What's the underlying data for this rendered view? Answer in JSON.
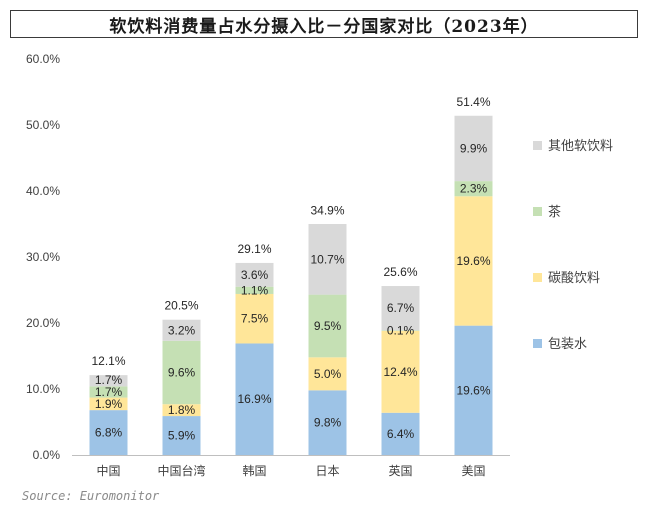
{
  "chart_data": {
    "type": "bar",
    "stacked": true,
    "title": "软饮料消费量占水分摄入比－分国家对比（2023年）",
    "categories": [
      "中国",
      "中国台湾",
      "韩国",
      "日本",
      "英国",
      "美国"
    ],
    "series": [
      {
        "name": "包装水",
        "values": [
          6.8,
          5.9,
          16.9,
          9.8,
          6.4,
          19.6
        ],
        "labels": [
          "6.8%",
          "5.9%",
          "16.9%",
          "9.8%",
          "6.4%",
          "19.6%"
        ],
        "color": "#9dc3e6"
      },
      {
        "name": "碳酸饮料",
        "values": [
          1.9,
          1.8,
          7.5,
          5.0,
          12.4,
          19.6
        ],
        "labels": [
          "1.9%",
          "1.8%",
          "7.5%",
          "5.0%",
          "12.4%",
          "19.6%"
        ],
        "color": "#ffe699"
      },
      {
        "name": "茶",
        "values": [
          1.7,
          9.6,
          1.1,
          9.5,
          0.1,
          2.3
        ],
        "labels": [
          "1.7%",
          "9.6%",
          "1.1%",
          "9.5%",
          "0.1%",
          "2.3%"
        ],
        "color": "#c5e0b4"
      },
      {
        "name": "其他软饮料",
        "values": [
          1.7,
          3.2,
          3.6,
          10.7,
          6.7,
          9.9
        ],
        "labels": [
          "1.7%",
          "3.2%",
          "3.6%",
          "10.7%",
          "6.7%",
          "9.9%"
        ],
        "color": "#d9d9d9"
      }
    ],
    "totals": [
      12.1,
      20.5,
      29.1,
      34.9,
      25.6,
      51.4
    ],
    "total_labels": [
      "12.1%",
      "20.5%",
      "29.1%",
      "34.9%",
      "25.6%",
      "51.4%"
    ],
    "ylim": [
      0,
      60
    ],
    "yticks": [
      "0.0%",
      "10.0%",
      "20.0%",
      "30.0%",
      "40.0%",
      "50.0%",
      "60.0%"
    ],
    "xlabel": "",
    "ylabel": "",
    "grid": false,
    "legend_position": "right",
    "source": "Source: Euromonitor"
  }
}
